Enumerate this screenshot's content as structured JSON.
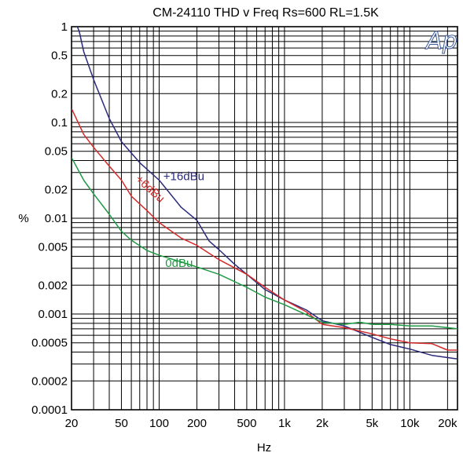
{
  "chart_data": {
    "type": "line",
    "title": "CM-24110 THD v Freq  Rs=600  RL=1.5K",
    "xlabel": "Hz",
    "ylabel": "%",
    "xscale": "log",
    "yscale": "log",
    "xlim": [
      20,
      24000
    ],
    "ylim": [
      0.0001,
      1
    ],
    "grid": true,
    "logo": "Ap",
    "x_ticks": [
      {
        "value": 20,
        "label": "20"
      },
      {
        "value": 50,
        "label": "50"
      },
      {
        "value": 100,
        "label": "100"
      },
      {
        "value": 200,
        "label": "200"
      },
      {
        "value": 500,
        "label": "500"
      },
      {
        "value": 1000,
        "label": "1k"
      },
      {
        "value": 2000,
        "label": "2k"
      },
      {
        "value": 5000,
        "label": "5k"
      },
      {
        "value": 10000,
        "label": "10k"
      },
      {
        "value": 20000,
        "label": "20k"
      }
    ],
    "y_ticks": [
      {
        "value": 1,
        "label": "1"
      },
      {
        "value": 0.5,
        "label": "0.5"
      },
      {
        "value": 0.2,
        "label": "0.2"
      },
      {
        "value": 0.1,
        "label": "0.1"
      },
      {
        "value": 0.05,
        "label": "0.05"
      },
      {
        "value": 0.02,
        "label": "0.02"
      },
      {
        "value": 0.01,
        "label": "0.01"
      },
      {
        "value": 0.005,
        "label": "0.005"
      },
      {
        "value": 0.002,
        "label": "0.002"
      },
      {
        "value": 0.001,
        "label": "0.001"
      },
      {
        "value": 0.0005,
        "label": "0.0005"
      },
      {
        "value": 0.0002,
        "label": "0.0002"
      },
      {
        "value": 0.0001,
        "label": "0.0001"
      }
    ],
    "series": [
      {
        "name": "+16dBu",
        "color": "#2b2a7a",
        "x": [
          20,
          23,
          25,
          30,
          40,
          50,
          70,
          100,
          150,
          200,
          250,
          300,
          400,
          500,
          700,
          1000,
          1500,
          2000,
          3000,
          5000,
          7000,
          10000,
          15000,
          24000
        ],
        "y": [
          1.4,
          0.9,
          0.55,
          0.28,
          0.11,
          0.063,
          0.038,
          0.025,
          0.013,
          0.0095,
          0.0058,
          0.0047,
          0.0033,
          0.0026,
          0.0018,
          0.0014,
          0.0011,
          0.00085,
          0.00075,
          0.00057,
          0.00048,
          0.00043,
          0.00037,
          0.00034
        ]
      },
      {
        "name": "+6dBu",
        "color": "#d42a2a",
        "x": [
          20,
          25,
          30,
          40,
          50,
          60,
          80,
          100,
          150,
          200,
          300,
          500,
          700,
          1000,
          1500,
          2000,
          3000,
          5000,
          7000,
          10000,
          15000,
          20000,
          24000
        ],
        "y": [
          0.14,
          0.075,
          0.055,
          0.035,
          0.025,
          0.017,
          0.012,
          0.009,
          0.0062,
          0.0052,
          0.0037,
          0.0026,
          0.0019,
          0.0014,
          0.00105,
          0.00078,
          0.00072,
          0.00062,
          0.00055,
          0.0005,
          0.00049,
          0.00042,
          0.00042
        ]
      },
      {
        "name": "0dBu",
        "color": "#1f9a44",
        "x": [
          20,
          25,
          30,
          40,
          50,
          60,
          80,
          100,
          150,
          200,
          300,
          500,
          700,
          1000,
          1500,
          2000,
          3000,
          4000,
          5000,
          7000,
          10000,
          15000,
          20000,
          24000
        ],
        "y": [
          0.043,
          0.025,
          0.018,
          0.011,
          0.0073,
          0.0059,
          0.0046,
          0.0041,
          0.0035,
          0.0031,
          0.0026,
          0.0019,
          0.0015,
          0.00125,
          0.00098,
          0.00082,
          0.00078,
          0.00082,
          0.00078,
          0.00078,
          0.00075,
          0.00075,
          0.00072,
          0.0007
        ]
      }
    ],
    "annotations": [
      {
        "text": "+16dBu",
        "color": "#2b2a7a",
        "at_x": 108,
        "at_y": 0.025,
        "rotate": 0
      },
      {
        "text": "+6dBu",
        "color": "#d42a2a",
        "at_x": 64,
        "at_y": 0.025,
        "rotate": 42
      },
      {
        "text": "0dBu",
        "color": "#1f9a44",
        "at_x": 112,
        "at_y": 0.0031,
        "rotate": 0
      }
    ]
  }
}
